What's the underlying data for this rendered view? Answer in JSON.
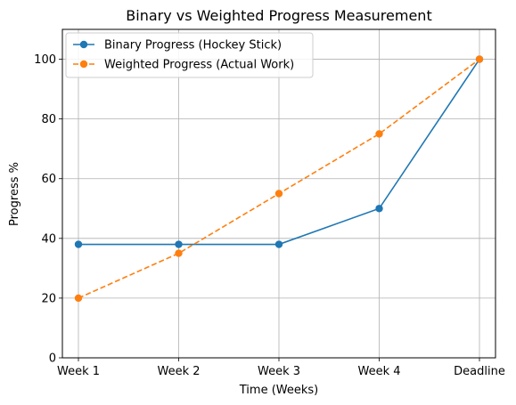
{
  "chart_data": {
    "type": "line",
    "title": "Binary vs Weighted Progress Measurement",
    "xlabel": "Time (Weeks)",
    "ylabel": "Progress %",
    "categories": [
      "Week 1",
      "Week 2",
      "Week 3",
      "Week 4",
      "Deadline"
    ],
    "ylim": [
      0,
      110
    ],
    "yticks": [
      0,
      20,
      40,
      60,
      80,
      100
    ],
    "grid": true,
    "legend_position": "top-left",
    "series": [
      {
        "name": "Binary Progress (Hockey Stick)",
        "values": [
          38,
          38,
          38,
          50,
          100
        ],
        "color": "#1f77b4",
        "style": "solid",
        "marker": "circle"
      },
      {
        "name": "Weighted Progress (Actual Work)",
        "values": [
          20,
          35,
          55,
          75,
          100
        ],
        "color": "#ff7f0e",
        "style": "dashed",
        "marker": "circle"
      }
    ]
  }
}
